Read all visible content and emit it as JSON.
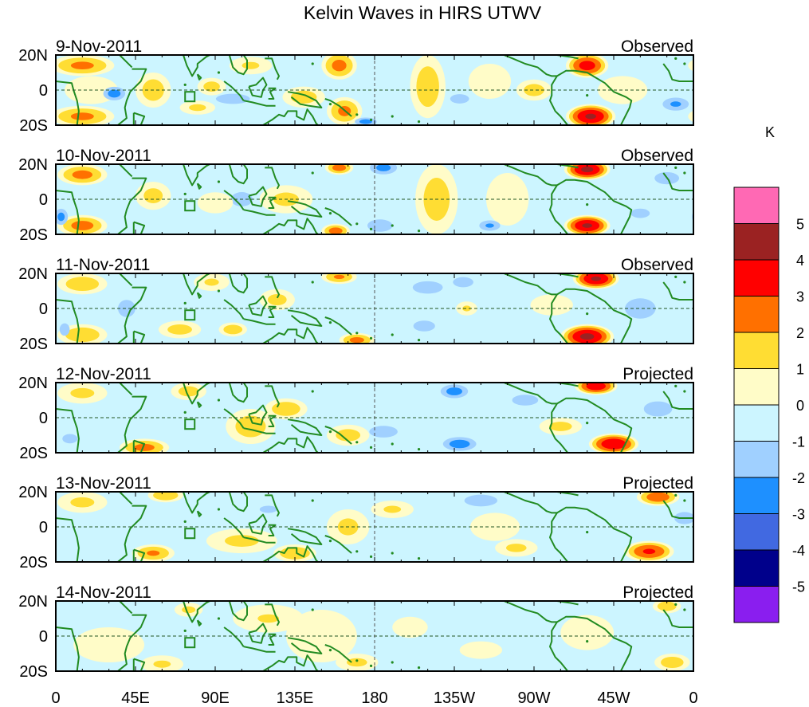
{
  "chart_data": {
    "type": "heatmap",
    "title": "Kelvin Waves in HIRS UTWV",
    "units_label": "K",
    "x_ticks": [
      "0",
      "45E",
      "90E",
      "135E",
      "180",
      "135W",
      "90W",
      "45W",
      "0"
    ],
    "y_ticks": [
      "20N",
      "0",
      "20S"
    ],
    "lon_range": [
      0,
      360
    ],
    "lat_range": [
      -20,
      20
    ],
    "colorbar": {
      "labels": [
        "5",
        "4",
        "3",
        "2",
        "1",
        "0",
        "-1",
        "-2",
        "-3",
        "-4",
        "-5"
      ],
      "colors": [
        "#ff69b4",
        "#9b2222",
        "#ff0000",
        "#ff7000",
        "#ffdd33",
        "#fffcc8",
        "#ccf5ff",
        "#a0d0ff",
        "#1e90ff",
        "#4169e1",
        "#00008b",
        "#8a1eef"
      ]
    },
    "feature_format": "lon, lat, lon_halfwidth_deg, lat_halfwidth_deg, peak_K",
    "panels": [
      {
        "date": "9-Nov-2011",
        "status": "Observed",
        "features": [
          [
            20,
            0,
            15,
            8,
            0.8
          ],
          [
            100,
            -5,
            20,
            6,
            -1.3
          ],
          [
            15,
            14,
            18,
            6,
            2.3
          ],
          [
            15,
            -15,
            18,
            6,
            2.3
          ],
          [
            33,
            -2,
            8,
            5,
            -2.5
          ],
          [
            55,
            0,
            10,
            10,
            1.6
          ],
          [
            88,
            2,
            8,
            5,
            1.5
          ],
          [
            80,
            -10,
            10,
            4,
            1.3
          ],
          [
            110,
            14,
            12,
            5,
            1.2
          ],
          [
            140,
            -4,
            12,
            6,
            1.6
          ],
          [
            160,
            14,
            10,
            8,
            2.4
          ],
          [
            163,
            -12,
            10,
            8,
            2.3
          ],
          [
            175,
            -18,
            8,
            3,
            -2.5
          ],
          [
            210,
            2,
            10,
            18,
            1.7
          ],
          [
            245,
            5,
            12,
            10,
            1.0
          ],
          [
            228,
            -5,
            8,
            4,
            -1.8
          ],
          [
            270,
            0,
            10,
            6,
            1.5
          ],
          [
            320,
            0,
            14,
            8,
            0.8
          ],
          [
            300,
            14,
            12,
            7,
            3.5
          ],
          [
            302,
            -15,
            14,
            7,
            4.2
          ],
          [
            350,
            -8,
            10,
            5,
            -2.2
          ]
        ]
      },
      {
        "date": "10-Nov-2011",
        "status": "Observed",
        "features": [
          [
            105,
            0,
            15,
            10,
            -1.2
          ],
          [
            15,
            14,
            14,
            6,
            2.4
          ],
          [
            15,
            -15,
            14,
            6,
            2.5
          ],
          [
            3,
            -10,
            5,
            6,
            -2.4
          ],
          [
            55,
            2,
            10,
            8,
            1.4
          ],
          [
            90,
            -2,
            10,
            6,
            1.0
          ],
          [
            130,
            0,
            15,
            8,
            1.3
          ],
          [
            160,
            18,
            8,
            4,
            2.6
          ],
          [
            158,
            -18,
            8,
            4,
            2.6
          ],
          [
            185,
            18,
            10,
            5,
            -2.4
          ],
          [
            183,
            -15,
            10,
            5,
            -2.0
          ],
          [
            215,
            0,
            12,
            20,
            1.6
          ],
          [
            255,
            0,
            12,
            15,
            1.0
          ],
          [
            245,
            -15,
            8,
            4,
            -2.2
          ],
          [
            345,
            12,
            12,
            6,
            -1.5
          ],
          [
            330,
            -8,
            10,
            5,
            -1.4
          ],
          [
            300,
            17,
            13,
            6,
            4.3
          ],
          [
            300,
            -15,
            13,
            6,
            4.2
          ]
        ]
      },
      {
        "date": "11-Nov-2011",
        "status": "Observed",
        "features": [
          [
            40,
            0,
            12,
            12,
            -1.2
          ],
          [
            330,
            0,
            15,
            10,
            -1.5
          ],
          [
            15,
            14,
            14,
            6,
            1.8
          ],
          [
            15,
            -15,
            14,
            6,
            1.9
          ],
          [
            5,
            -12,
            4,
            5,
            -2.0
          ],
          [
            70,
            -12,
            12,
            5,
            1.5
          ],
          [
            100,
            -12,
            8,
            4,
            1.8
          ],
          [
            88,
            15,
            10,
            5,
            1.2
          ],
          [
            125,
            5,
            10,
            6,
            1.4
          ],
          [
            160,
            18,
            10,
            4,
            2.2
          ],
          [
            170,
            -18,
            10,
            4,
            2.4
          ],
          [
            210,
            12,
            12,
            5,
            -2.0
          ],
          [
            230,
            15,
            10,
            5,
            -1.5
          ],
          [
            208,
            -10,
            10,
            5,
            -1.6
          ],
          [
            232,
            0,
            6,
            4,
            1.2
          ],
          [
            280,
            2,
            12,
            6,
            1.0
          ],
          [
            305,
            17,
            13,
            6,
            4.2
          ],
          [
            300,
            -16,
            15,
            7,
            4.3
          ]
        ]
      },
      {
        "date": "12-Nov-2011",
        "status": "Projected",
        "features": [
          [
            340,
            5,
            15,
            8,
            -1.4
          ],
          [
            15,
            14,
            14,
            6,
            1.3
          ],
          [
            50,
            -17,
            14,
            5,
            2.4
          ],
          [
            75,
            15,
            10,
            5,
            1.5
          ],
          [
            110,
            -5,
            14,
            10,
            1.6
          ],
          [
            130,
            5,
            12,
            6,
            1.8
          ],
          [
            165,
            -10,
            12,
            6,
            1.5
          ],
          [
            225,
            15,
            10,
            5,
            -2.5
          ],
          [
            228,
            -15,
            12,
            5,
            -2.6
          ],
          [
            185,
            -8,
            12,
            5,
            -1.8
          ],
          [
            265,
            10,
            12,
            5,
            -1.6
          ],
          [
            285,
            -5,
            12,
            5,
            1.4
          ],
          [
            305,
            18,
            12,
            5,
            3.8
          ],
          [
            315,
            -15,
            14,
            6,
            4.0
          ],
          [
            8,
            -12,
            8,
            5,
            -1.4
          ]
        ]
      },
      {
        "date": "13-Nov-2011",
        "status": "Projected",
        "features": [
          [
            120,
            10,
            12,
            5,
            -1.2
          ],
          [
            15,
            14,
            14,
            6,
            1.3
          ],
          [
            62,
            18,
            10,
            4,
            2.0
          ],
          [
            55,
            -15,
            12,
            5,
            2.2
          ],
          [
            105,
            -8,
            20,
            7,
            1.3
          ],
          [
            135,
            -15,
            12,
            5,
            2.0
          ],
          [
            165,
            0,
            12,
            10,
            1.3
          ],
          [
            190,
            10,
            12,
            5,
            1.2
          ],
          [
            240,
            15,
            14,
            5,
            -1.8
          ],
          [
            248,
            0,
            14,
            8,
            1.0
          ],
          [
            260,
            -12,
            12,
            5,
            1.3
          ],
          [
            340,
            17,
            12,
            5,
            2.8
          ],
          [
            335,
            -14,
            14,
            6,
            3.2
          ],
          [
            355,
            5,
            10,
            6,
            -1.5
          ]
        ]
      },
      {
        "date": "14-Nov-2011",
        "status": "Projected",
        "features": [
          [
            30,
            -5,
            20,
            10,
            0.6
          ],
          [
            150,
            0,
            20,
            15,
            0.7
          ],
          [
            60,
            -16,
            12,
            5,
            1.2
          ],
          [
            75,
            15,
            8,
            4,
            1.3
          ],
          [
            120,
            10,
            20,
            8,
            1.1
          ],
          [
            170,
            -15,
            12,
            5,
            1.3
          ],
          [
            200,
            5,
            10,
            6,
            1.0
          ],
          [
            240,
            -8,
            12,
            5,
            1.0
          ],
          [
            300,
            2,
            15,
            10,
            0.9
          ],
          [
            345,
            17,
            8,
            4,
            1.8
          ],
          [
            348,
            -15,
            10,
            5,
            1.7
          ]
        ]
      }
    ]
  }
}
